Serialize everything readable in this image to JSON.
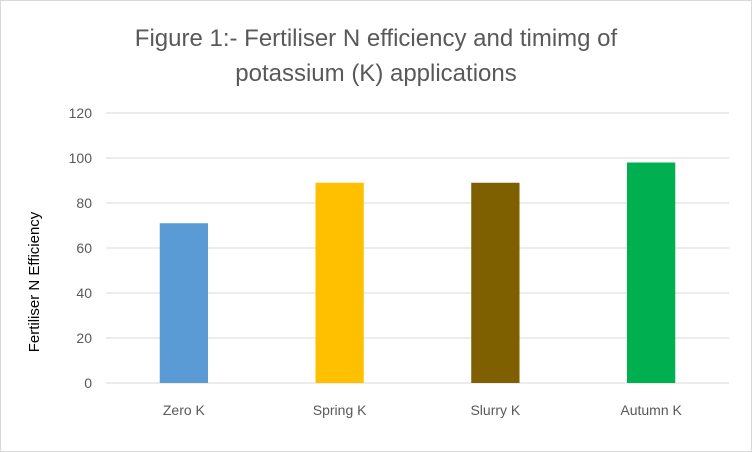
{
  "chart_data": {
    "type": "bar",
    "title": "Figure 1:- Fertiliser N efficiency and timimg of potassium (K) applications",
    "title_lines": [
      "Figure 1:- Fertiliser N efficiency and timimg of",
      "potassium (K) applications"
    ],
    "xlabel": "",
    "ylabel": "Fertiliser N Efficiency",
    "categories": [
      "Zero K",
      "Spring K",
      "Slurry K",
      "Autumn K"
    ],
    "values": [
      71,
      89,
      89,
      98
    ],
    "colors": [
      "#5b9bd5",
      "#ffc000",
      "#7f6000",
      "#00b050"
    ],
    "ylim": [
      0,
      120
    ],
    "yticks": [
      0,
      20,
      40,
      60,
      80,
      100,
      120
    ],
    "grid": true,
    "legend": "none"
  }
}
